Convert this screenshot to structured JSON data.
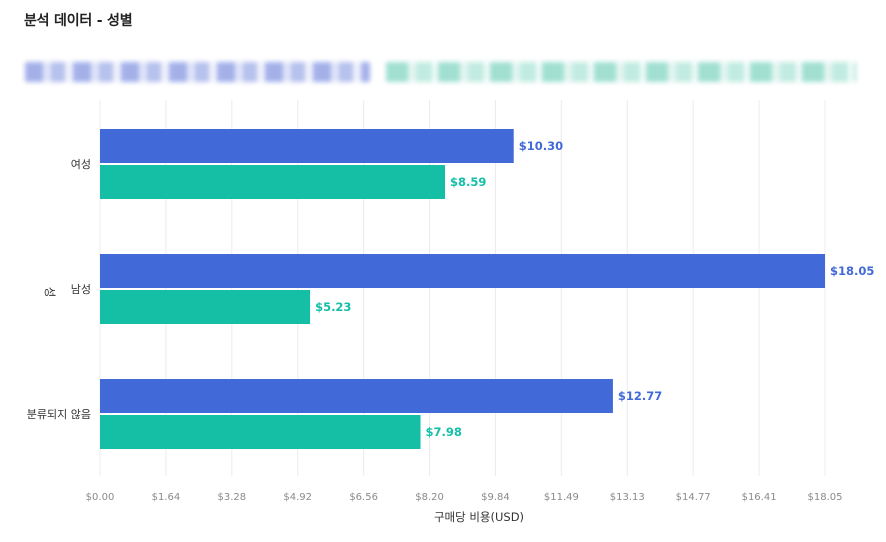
{
  "title": "분석 데이터 - 성별",
  "legend_obscured": true,
  "chart_data": {
    "type": "bar",
    "orientation": "horizontal",
    "categories": [
      "여성",
      "남성",
      "분류되지 않음"
    ],
    "series": [
      {
        "values": [
          10.3,
          18.05,
          12.77
        ],
        "color": "#4169d8",
        "value_labels": [
          "$10.30",
          "$18.05",
          "$12.77"
        ]
      },
      {
        "values": [
          8.59,
          5.23,
          7.98
        ],
        "color": "#14bfa6",
        "value_labels": [
          "$8.59",
          "$5.23",
          "$7.98"
        ]
      }
    ],
    "xlabel": "구매당 비용(USD)",
    "ylabel": "성",
    "xlim": [
      0,
      18.05
    ],
    "x_ticks": [
      "$0.00",
      "$1.64",
      "$3.28",
      "$4.92",
      "$6.56",
      "$8.20",
      "$9.84",
      "$11.49",
      "$13.13",
      "$14.77",
      "$16.41",
      "$18.05"
    ],
    "grid": "vertical",
    "legend": "top"
  }
}
